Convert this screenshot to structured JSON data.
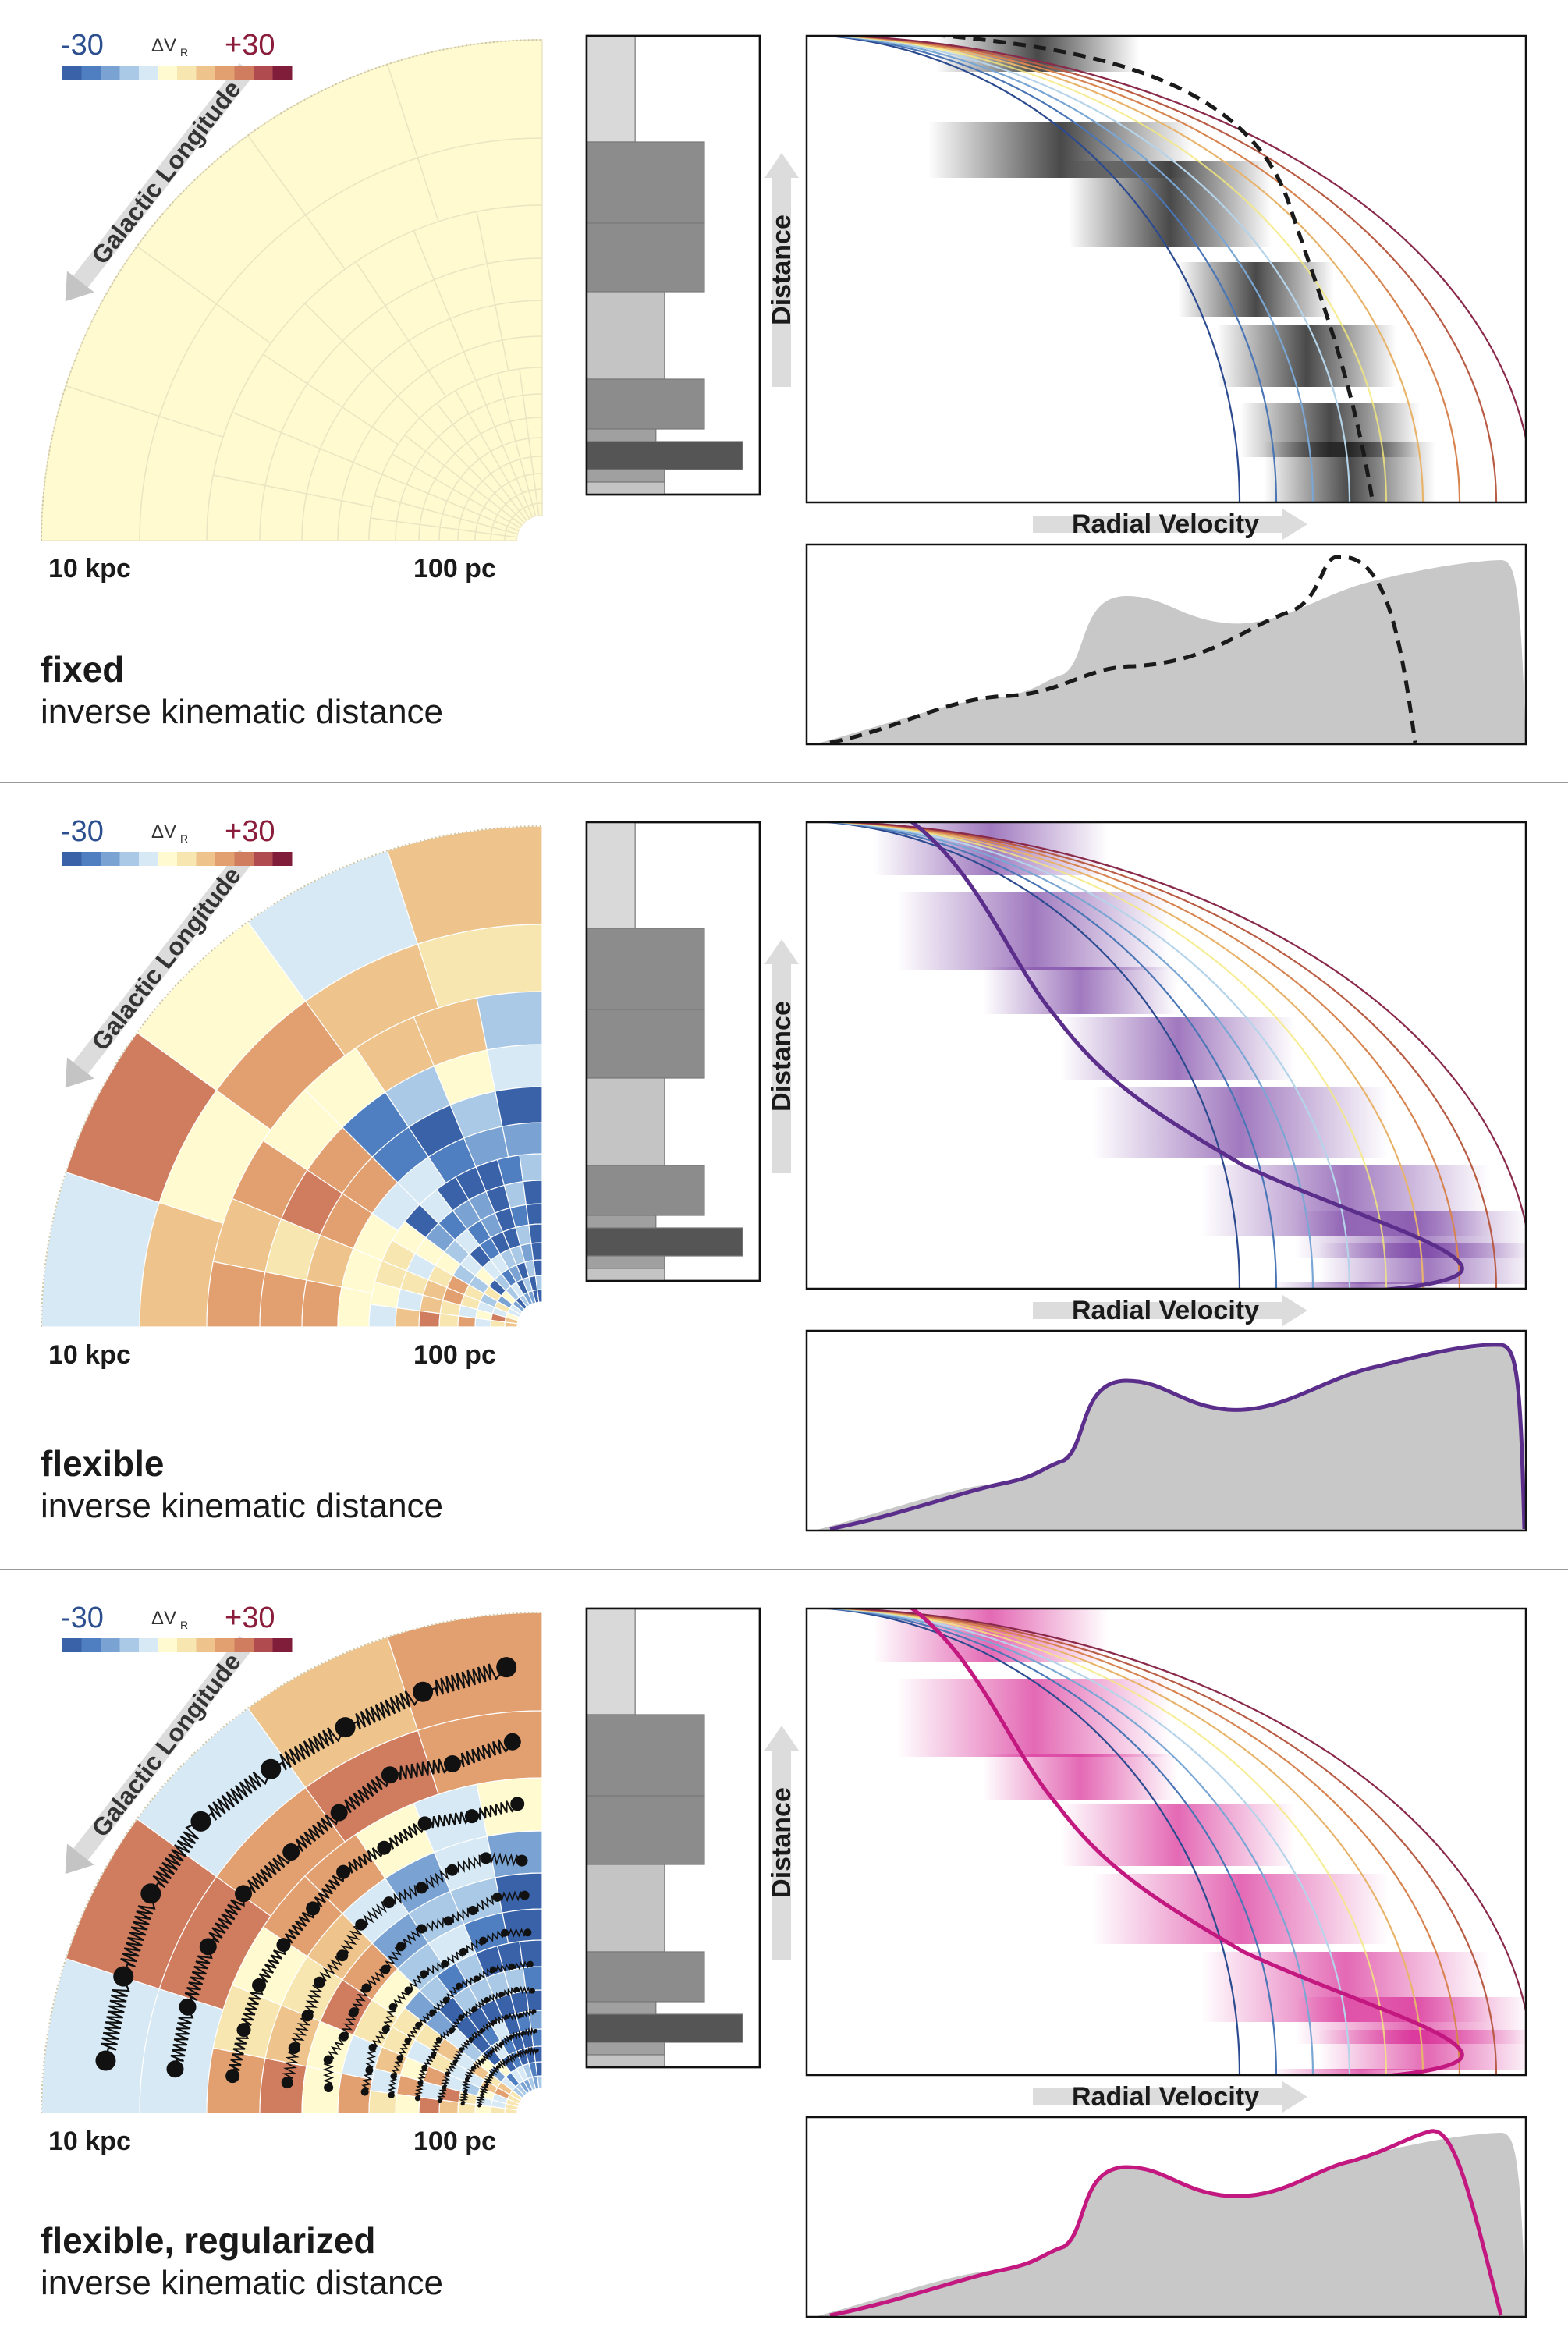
{
  "colorbar": {
    "min_label": "-30",
    "max_label": "+30",
    "mid_label": "ΔV",
    "mid_sub": "R",
    "min_color": "#2b4f8f",
    "max_color": "#8a1d3b",
    "colors": [
      "#3a62a8",
      "#4f7fc0",
      "#7aa3d3",
      "#a9c9e6",
      "#d7e9f4",
      "#fffad0",
      "#f7e6b0",
      "#eec48c",
      "#e2a070",
      "#cf7c5f",
      "#b04c50",
      "#7f1d3b"
    ]
  },
  "fan_labels": {
    "longitude": "Galactic Longitude",
    "outer": "10 kpc",
    "inner": "100 pc"
  },
  "axis_labels": {
    "distance": "Distance",
    "radial_velocity": "Radial Velocity"
  },
  "panels": [
    {
      "title": "fixed",
      "subtitle": "inverse kinematic distance",
      "curve_color": "#1a1a1a",
      "curve_style": "dashed",
      "fan_mode": "uniform"
    },
    {
      "title": "flexible",
      "subtitle": "inverse kinematic distance",
      "curve_color": "#5b2e8c",
      "curve_style": "solid",
      "fan_mode": "colored"
    },
    {
      "title": "flexible, regularized",
      "subtitle": "inverse kinematic distance",
      "curve_color": "#c2187f",
      "curve_style": "solid",
      "fan_mode": "springs"
    }
  ],
  "histogram_bars": [
    0.22,
    0.68,
    0.68,
    0.45,
    0.68,
    0.9,
    0.4
  ],
  "spectrum_fill": "#c8c8c8",
  "arc_colors": [
    "#2c4a8f",
    "#4a76b6",
    "#7aa6d4",
    "#b5d4ea",
    "#f4e97c",
    "#e8b46b",
    "#d88451",
    "#b85c45",
    "#8a2a4a"
  ]
}
